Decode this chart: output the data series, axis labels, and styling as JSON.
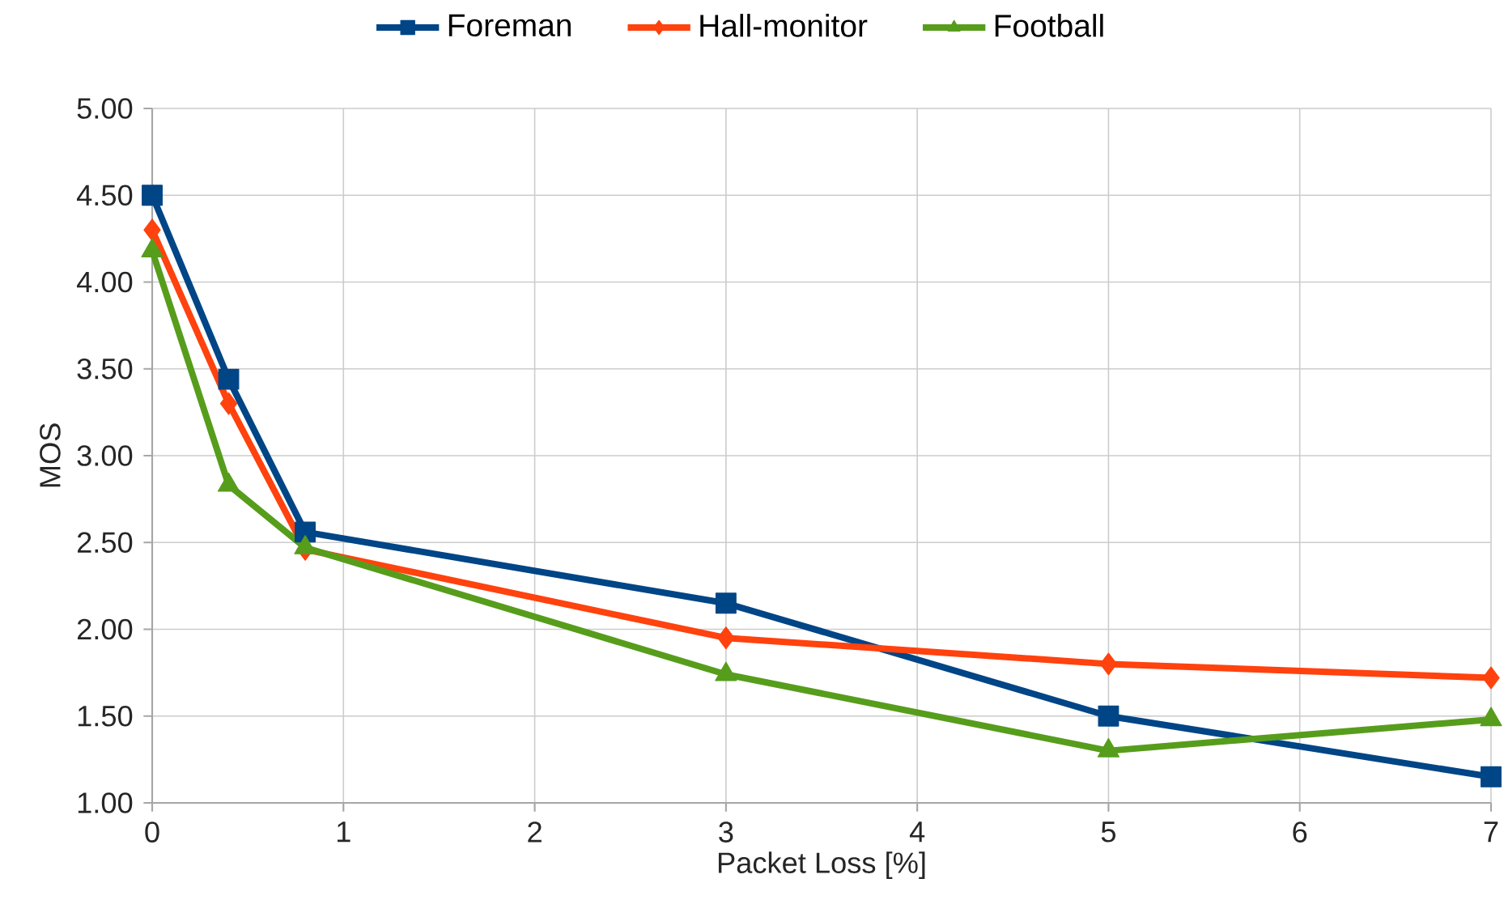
{
  "chart_data": {
    "type": "line",
    "xlabel": "Packet Loss [%]",
    "ylabel": "MOS",
    "x": [
      0,
      0.4,
      0.8,
      3,
      5,
      7
    ],
    "series": [
      {
        "name": "Foreman",
        "color": "#004586",
        "marker": "square",
        "values": [
          4.5,
          3.44,
          2.56,
          2.15,
          1.5,
          1.15
        ]
      },
      {
        "name": "Hall-monitor",
        "color": "#ff420e",
        "marker": "diamond",
        "values": [
          4.3,
          3.3,
          2.46,
          1.95,
          1.8,
          1.72
        ]
      },
      {
        "name": "Football",
        "color": "#579d1c",
        "marker": "triangle",
        "values": [
          4.18,
          2.83,
          2.47,
          1.74,
          1.3,
          1.48
        ]
      }
    ],
    "xlim": [
      0,
      7
    ],
    "ylim": [
      1,
      5
    ],
    "xticks": [
      0,
      1,
      2,
      3,
      4,
      5,
      6,
      7
    ],
    "yticks": [
      {
        "value": 1,
        "label": "1.00"
      },
      {
        "value": 1.5,
        "label": "1.50"
      },
      {
        "value": 2,
        "label": "2.00"
      },
      {
        "value": 2.5,
        "label": "2.50"
      },
      {
        "value": 3,
        "label": "3.00"
      },
      {
        "value": 3.5,
        "label": "3.50"
      },
      {
        "value": 4,
        "label": "4.00"
      },
      {
        "value": 4.5,
        "label": "4.50"
      },
      {
        "value": 5,
        "label": "5.00"
      }
    ],
    "grid": true,
    "legend": "top"
  }
}
